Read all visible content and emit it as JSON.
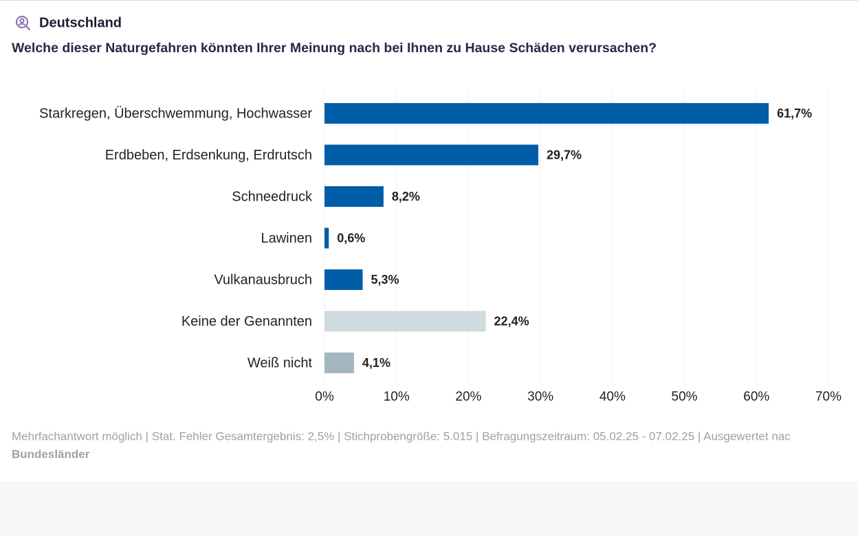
{
  "chart_data": {
    "type": "bar",
    "orientation": "horizontal",
    "subtitle": "Deutschland",
    "title": "Welche dieser Naturgefahren könnten Ihrer Meinung nach bei Ihnen zu Hause Schäden verursachen?",
    "categories": [
      "Starkregen, Überschwemmung, Hochwasser",
      "Erdbeben, Erdsenkung, Erdrutsch",
      "Schneedruck",
      "Lawinen",
      "Vulkanausbruch",
      "Keine der Genannten",
      "Weiß nicht"
    ],
    "values": [
      61.7,
      29.7,
      8.2,
      0.6,
      5.3,
      22.4,
      4.1
    ],
    "value_labels": [
      "61,7%",
      "29,7%",
      "8,2%",
      "0,6%",
      "5,3%",
      "22,4%",
      "4,1%"
    ],
    "colors": [
      "#005da8",
      "#005da8",
      "#005da8",
      "#005da8",
      "#005da8",
      "#cfdbde",
      "#a3b5bf"
    ],
    "xlim": [
      0,
      70
    ],
    "xticks": [
      {
        "value": 0,
        "label": "0%"
      },
      {
        "value": 10,
        "label": "10%"
      },
      {
        "value": 20,
        "label": "20%"
      },
      {
        "value": 30,
        "label": "30%"
      },
      {
        "value": 40,
        "label": "40%"
      },
      {
        "value": 50,
        "label": "50%"
      },
      {
        "value": 60,
        "label": "60%"
      },
      {
        "value": 70,
        "label": "70%"
      }
    ],
    "grid": true,
    "footnote": "Mehrfachantwort möglich | Stat. Fehler Gesamtergebnis: 2,5% | Stichprobengröße: 5.015 | Befragungszeitraum: 05.02.25 - 07.02.25 | Ausgewertet nac",
    "footnote_strong": "Bundesländer"
  }
}
